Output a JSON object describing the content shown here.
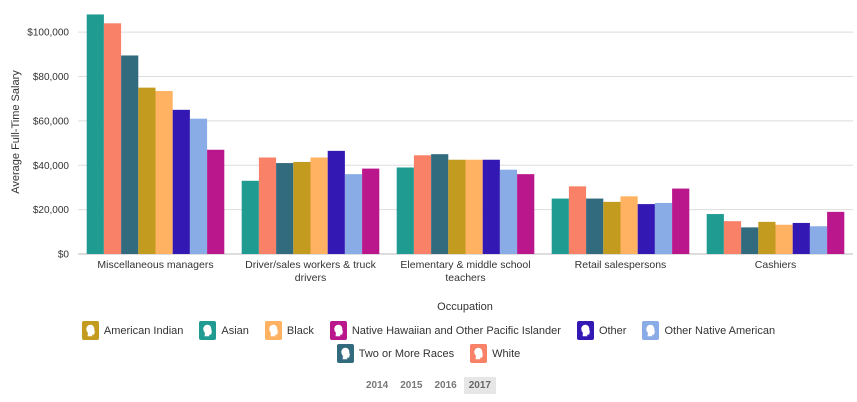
{
  "chart_data": {
    "type": "bar",
    "xlabel": "Occupation",
    "ylabel": "Average Full-Time Salary",
    "ylim": [
      0,
      110000
    ],
    "yticks": [
      0,
      20000,
      40000,
      60000,
      80000,
      100000
    ],
    "ytick_labels": [
      "$0",
      "$20,000",
      "$40,000",
      "$60,000",
      "$80,000",
      "$100,000"
    ],
    "grid": true,
    "legend_position": "bottom",
    "categories": [
      "Miscellaneous managers",
      "Driver/sales workers & truck drivers",
      "Elementary & middle school teachers",
      "Retail salespersons",
      "Cashiers"
    ],
    "category_lines": [
      [
        "Miscellaneous managers"
      ],
      [
        "Driver/sales workers & truck",
        "drivers"
      ],
      [
        "Elementary & middle school",
        "teachers"
      ],
      [
        "Retail salespersons"
      ],
      [
        "Cashiers"
      ]
    ],
    "series": [
      {
        "name": "Asian",
        "color": "#1f9b92",
        "values": [
          108000,
          33000,
          39000,
          25000,
          18000
        ]
      },
      {
        "name": "White",
        "color": "#f88167",
        "values": [
          104000,
          43500,
          44500,
          30500,
          14800
        ]
      },
      {
        "name": "Two or More Races",
        "color": "#336b7e",
        "values": [
          89500,
          41000,
          45000,
          25000,
          12000
        ]
      },
      {
        "name": "American Indian",
        "color": "#c39b1e",
        "values": [
          75000,
          41500,
          42500,
          23500,
          14500
        ]
      },
      {
        "name": "Black",
        "color": "#ffb262",
        "values": [
          73500,
          43500,
          42500,
          26000,
          13200
        ]
      },
      {
        "name": "Other",
        "color": "#3318b4",
        "values": [
          65000,
          46500,
          42500,
          22500,
          14000
        ]
      },
      {
        "name": "Other Native American",
        "color": "#89abe6",
        "values": [
          61000,
          36000,
          38000,
          23000,
          12500
        ]
      },
      {
        "name": "Native Hawaiian and Other Pacific Islander",
        "color": "#bb178d",
        "values": [
          47000,
          38500,
          36000,
          29500,
          19000
        ]
      }
    ]
  },
  "legend": {
    "rows": [
      [
        {
          "label": "American Indian",
          "color": "#c39b1e"
        },
        {
          "label": "Asian",
          "color": "#1f9b92"
        },
        {
          "label": "Black",
          "color": "#ffb262"
        },
        {
          "label": "Native Hawaiian and Other Pacific Islander",
          "color": "#bb178d"
        },
        {
          "label": "Other",
          "color": "#3318b4"
        },
        {
          "label": "Other Native American",
          "color": "#89abe6"
        }
      ],
      [
        {
          "label": "Two or More Races",
          "color": "#336b7e"
        },
        {
          "label": "White",
          "color": "#f88167"
        }
      ]
    ],
    "icon": "person-head-icon"
  },
  "year_selector": {
    "years": [
      "2014",
      "2015",
      "2016",
      "2017"
    ],
    "selected": "2017"
  }
}
